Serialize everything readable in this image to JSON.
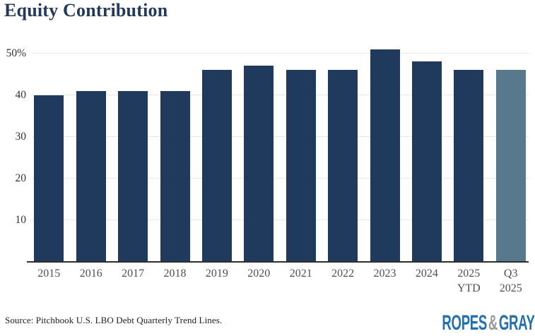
{
  "chart_data": {
    "type": "bar",
    "title": "Equity Contribution",
    "categories": [
      "2015",
      "2016",
      "2017",
      "2018",
      "2019",
      "2020",
      "2021",
      "2022",
      "2023",
      "2024",
      "2025\nYTD",
      "Q3\n2025"
    ],
    "values": [
      40,
      41,
      41,
      41,
      46,
      47,
      46,
      46,
      51,
      48,
      46,
      46
    ],
    "unit": "%",
    "xlabel": "",
    "ylabel": "",
    "ylim": [
      0,
      52.5
    ],
    "yticks": [
      {
        "value": 10,
        "label": "10"
      },
      {
        "value": 20,
        "label": "20"
      },
      {
        "value": 30,
        "label": "30"
      },
      {
        "value": 40,
        "label": "40"
      },
      {
        "value": 50,
        "label": "50%"
      }
    ],
    "grid": "horizontal-light",
    "legend": "none",
    "highlight_index": 11,
    "style": {
      "bar_color": "#203a5e",
      "highlight_bar_color": "#58788e",
      "grid_color": "#e7e7e7",
      "axis_color": "#2e2e2e",
      "ytick_color": "#333333",
      "xtick_color": "#4f4f4f",
      "title_color": "#23395c"
    }
  },
  "footer": {
    "source": "Source: Pitchbook U.S. LBO Debt Quarterly Trend Lines.",
    "logo": {
      "ropes": "ROPES",
      "amp": "&",
      "gray": "GRAY",
      "blue": "#2170b4",
      "amp_gray": "#97999b"
    }
  }
}
